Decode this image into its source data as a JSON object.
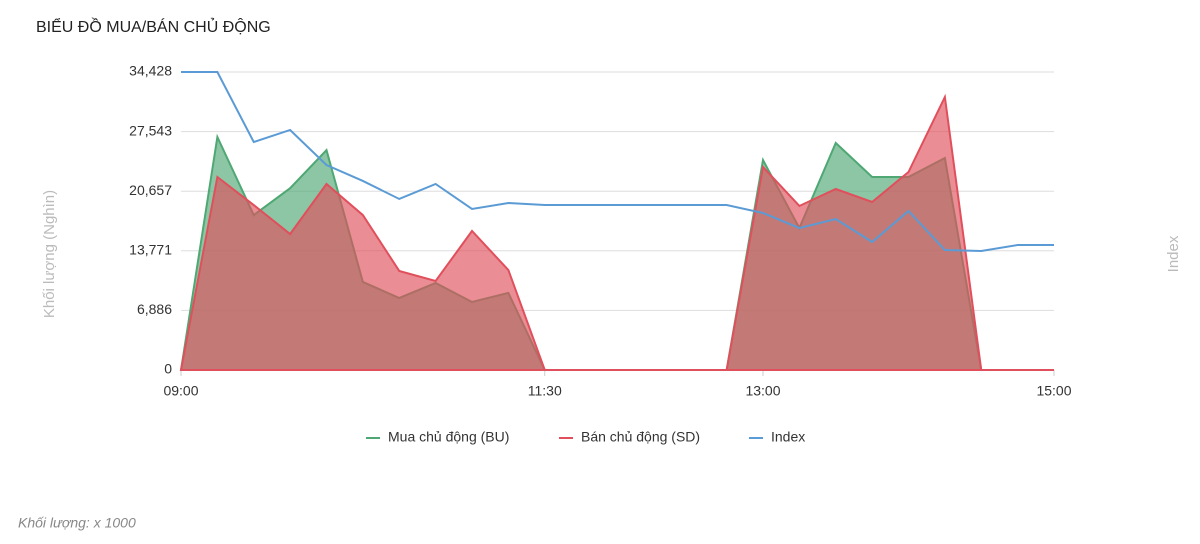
{
  "chart_data": {
    "type": "area",
    "title": "BIỂU ĐỒ MUA/BÁN CHỦ ĐỘNG",
    "y_label": "Khối lượng (Nghìn)",
    "y2_label": "Index",
    "footnote": "Khối lượng: x 1000",
    "x": [
      "09:00",
      "09:15",
      "09:30",
      "09:45",
      "10:00",
      "10:15",
      "10:30",
      "10:45",
      "11:00",
      "11:15",
      "11:30",
      "11:45",
      "12:00",
      "12:15",
      "12:30",
      "12:45",
      "13:00",
      "13:15",
      "13:30",
      "13:45",
      "14:00",
      "14:15",
      "14:30",
      "14:45",
      "15:00"
    ],
    "xlim": [
      "09:00",
      "15:00"
    ],
    "xticks": [
      "09:00",
      "11:30",
      "13:00",
      "15:00"
    ],
    "ylim": [
      0,
      34428
    ],
    "yticks": [
      0,
      {
        "value": 6886,
        "label": "6,886"
      },
      {
        "value": 13771,
        "label": "13,771"
      },
      {
        "value": 20657,
        "label": "20,657"
      },
      {
        "value": 27543,
        "label": "27,543"
      },
      {
        "value": 34428,
        "label": "34,428"
      }
    ],
    "grid": true,
    "legend": "bottom",
    "series": [
      {
        "name": "Mua chủ động (BU)",
        "color": "#4fa874",
        "kind": "area",
        "values": [
          0,
          26920,
          17900,
          21000,
          25400,
          10170,
          8320,
          10050,
          7860,
          8900,
          0,
          0,
          0,
          0,
          0,
          0,
          24260,
          16400,
          26230,
          22300,
          22300,
          24490,
          0,
          0,
          0
        ]
      },
      {
        "name": "Bán chủ động (SD)",
        "color": "#e0505c",
        "kind": "area",
        "values": [
          0,
          22300,
          19060,
          15710,
          21490,
          17900,
          11440,
          10280,
          16060,
          11550,
          0,
          0,
          0,
          0,
          0,
          0,
          23450,
          18950,
          20910,
          19410,
          22870,
          31540,
          0,
          0,
          0
        ]
      },
      {
        "name": "Index",
        "color": "#5b9bd5",
        "kind": "line",
        "values": [
          34428,
          34428,
          26340,
          27730,
          23680,
          21840,
          19760,
          21490,
          18600,
          19290,
          19060,
          19060,
          19060,
          19060,
          19060,
          19060,
          18140,
          16400,
          17440,
          14790,
          18370,
          13860,
          13750,
          14440,
          14440
        ]
      }
    ]
  }
}
